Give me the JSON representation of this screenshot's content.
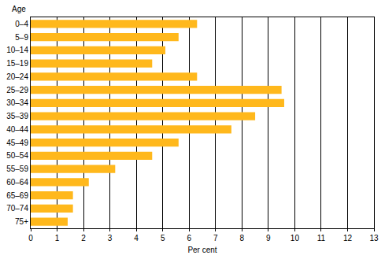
{
  "chart_data": {
    "type": "bar",
    "orientation": "horizontal",
    "xlabel": "Per cent",
    "ylabel": "Age",
    "categories": [
      "0–4",
      "5–9",
      "10–14",
      "15–19",
      "20–24",
      "25–29",
      "30–34",
      "35–39",
      "40–44",
      "45–49",
      "50–54",
      "55–59",
      "60–64",
      "65–69",
      "70–74",
      "75+"
    ],
    "values": [
      6.3,
      5.6,
      5.1,
      4.6,
      6.3,
      9.5,
      9.6,
      8.5,
      7.6,
      5.6,
      4.6,
      3.2,
      2.2,
      1.6,
      1.6,
      1.4
    ],
    "color": "#ffb81c",
    "xlim": [
      0,
      13
    ],
    "xticks": [
      0,
      1,
      2,
      3,
      4,
      5,
      6,
      7,
      8,
      9,
      10,
      11,
      12,
      13
    ],
    "grid": true
  }
}
